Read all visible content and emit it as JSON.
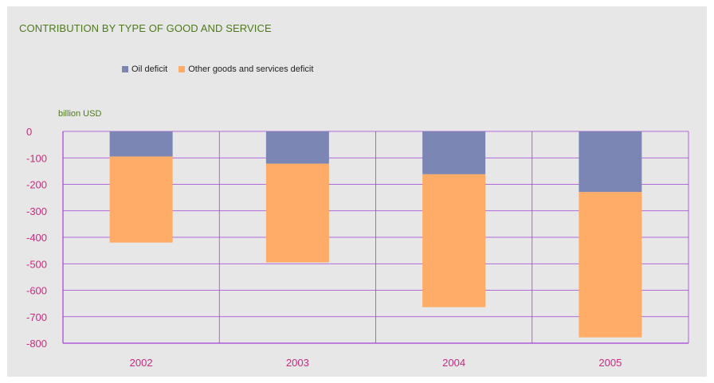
{
  "chart_data": {
    "type": "bar",
    "stacked": true,
    "title": "CONTRIBUTION BY TYPE OF GOOD AND SERVICE",
    "ylabel": "billion USD",
    "xlabel": "",
    "categories": [
      "2002",
      "2003",
      "2004",
      "2005"
    ],
    "series": [
      {
        "name": "Oil deficit",
        "values": [
          -95,
          -122,
          -162,
          -229
        ],
        "color": "#7b86b4"
      },
      {
        "name": "Other goods and services deficit",
        "values": [
          -325,
          -373,
          -502,
          -549
        ],
        "color": "#ffac69"
      }
    ],
    "ylim": [
      -800,
      0
    ],
    "yticks": [
      0,
      -100,
      -200,
      -300,
      -400,
      -500,
      -600,
      -700,
      -800
    ],
    "grid": true,
    "legend_position": "top",
    "colors": {
      "title": "#4f7a1c",
      "grid": "#a33fd6",
      "tick_labels": "#c62d7f",
      "background": "#e7e7e7"
    }
  }
}
